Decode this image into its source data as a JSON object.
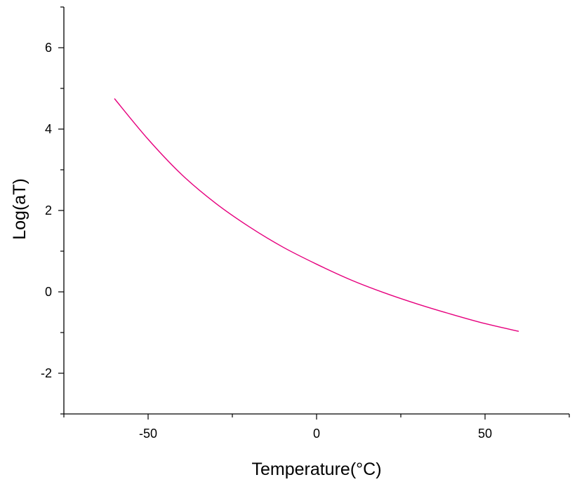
{
  "chart_data": {
    "type": "line",
    "title": "",
    "xlabel": "Temperature(°C)",
    "ylabel": "Log(aT)",
    "xlim": [
      -75,
      75
    ],
    "ylim": [
      -3,
      7
    ],
    "x_ticks": [
      -50,
      0,
      50
    ],
    "x_tick_labels": [
      "-50",
      "0",
      "50"
    ],
    "y_ticks": [
      -2,
      0,
      2,
      4,
      6
    ],
    "y_tick_labels": [
      "-2",
      "0",
      "2",
      "4",
      "6"
    ],
    "grid": false,
    "legend": "none",
    "series": [
      {
        "color": "#e6007e",
        "x": [
          -60,
          -50,
          -40,
          -30,
          -20,
          -10,
          0,
          10,
          20,
          30,
          40,
          50,
          60
        ],
        "y": [
          4.75,
          3.75,
          2.88,
          2.18,
          1.6,
          1.1,
          0.68,
          0.3,
          -0.02,
          -0.3,
          -0.55,
          -0.78,
          -0.97
        ]
      }
    ]
  }
}
